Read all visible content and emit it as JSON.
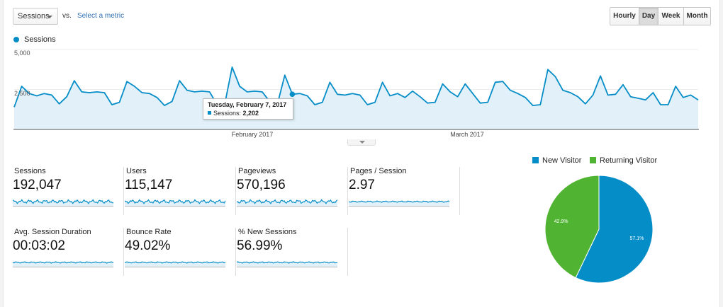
{
  "toolbar": {
    "metric_select": "Sessions",
    "vs_label": "vs.",
    "select_metric_link": "Select a metric",
    "range_buttons": [
      {
        "label": "Hourly",
        "active": false
      },
      {
        "label": "Day",
        "active": true
      },
      {
        "label": "Week",
        "active": false
      },
      {
        "label": "Month",
        "active": false
      }
    ]
  },
  "chart": {
    "legend": "Sessions",
    "color": "#058dc7",
    "fill": "#e2f1f9",
    "y_tick_labels": [
      "5,000",
      "2,500"
    ],
    "month_labels": [
      "February 2017",
      "March 2017"
    ],
    "tooltip": {
      "title": "Tuesday, February 7, 2017",
      "row": "Sessions: ",
      "value": "2,202"
    }
  },
  "chart_data": {
    "type": "area",
    "series": [
      {
        "name": "Sessions",
        "values": [
          1400,
          2700,
          2250,
          2100,
          2250,
          2150,
          1600,
          2050,
          3050,
          2350,
          2300,
          2350,
          2300,
          1550,
          1700,
          3000,
          2700,
          2300,
          2250,
          2000,
          1500,
          1750,
          3050,
          2450,
          2350,
          2400,
          2350,
          1550,
          1550,
          3900,
          2700,
          2350,
          2400,
          2350,
          1750,
          1550,
          3400,
          2202,
          2250,
          2100,
          1550,
          1700,
          2950,
          2200,
          2150,
          2250,
          2150,
          1550,
          1700,
          2950,
          2100,
          2250,
          2000,
          2400,
          2050,
          1650,
          1700,
          2850,
          2350,
          2050,
          2850,
          2250,
          1650,
          1700,
          2950,
          3000,
          2450,
          2250,
          2000,
          1500,
          1550,
          3750,
          3300,
          2450,
          2300,
          2050,
          1600,
          2150,
          3350,
          2150,
          2200,
          2800,
          2050,
          1950,
          1850,
          2300,
          1550,
          1550,
          2700,
          2000,
          2150,
          1850
        ]
      }
    ],
    "ylim": [
      0,
      5000
    ],
    "y_ticks": [
      2500,
      5000
    ],
    "highlight_index": 37,
    "grid": true
  },
  "kpis": [
    {
      "label": "Sessions",
      "value": "192,047"
    },
    {
      "label": "Users",
      "value": "115,147"
    },
    {
      "label": "Pageviews",
      "value": "570,196"
    },
    {
      "label": "Pages / Session",
      "value": "2.97"
    },
    {
      "label": "Avg. Session Duration",
      "value": "00:03:02"
    },
    {
      "label": "Bounce Rate",
      "value": "49.02%"
    },
    {
      "label": "% New Sessions",
      "value": "56.99%"
    }
  ],
  "pie": {
    "legend": [
      {
        "label": "New Visitor",
        "color": "#058dc7"
      },
      {
        "label": "Returning Visitor",
        "color": "#50b432"
      }
    ],
    "slices": [
      {
        "label": "New Visitor",
        "value": 57.1,
        "text": "57.1%",
        "color": "#058dc7"
      },
      {
        "label": "Returning Visitor",
        "value": 42.9,
        "text": "42.9%",
        "color": "#50b432"
      }
    ]
  }
}
